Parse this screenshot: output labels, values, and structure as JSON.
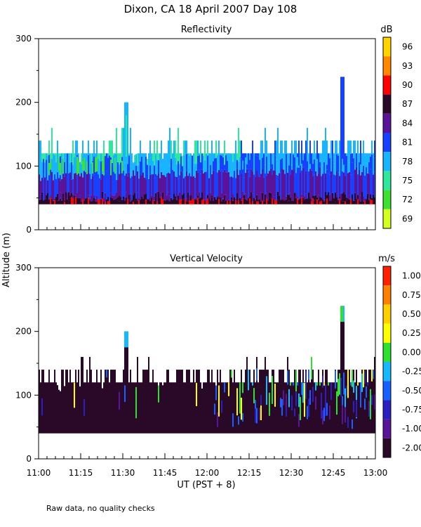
{
  "figure": {
    "title": "Dixon, CA 18 April 2007  Day 108",
    "ylabel": "Altitude (m)",
    "xlabel": "UT  (PST + 8)",
    "footnote": "Raw data, no quality checks"
  },
  "chart_data": [
    {
      "type": "heatmap",
      "title": "Reflectivity",
      "units": "dB",
      "x_tick_labels": [
        "11:00",
        "11:15",
        "11:30",
        "11:45",
        "12:00",
        "12:15",
        "12:30",
        "12:45",
        "13:00"
      ],
      "y_ticks": [
        0,
        100,
        200,
        300
      ],
      "ylim": [
        0,
        300
      ],
      "colorbar": {
        "ticks": [
          "96",
          "93",
          "90",
          "87",
          "84",
          "81",
          "78",
          "75",
          "72",
          "69"
        ],
        "colors": [
          "#ffd400",
          "#ff8800",
          "#ff0000",
          "#2a0828",
          "#5a149a",
          "#1840ff",
          "#18b4ff",
          "#30e89c",
          "#40e030",
          "#d4ff20"
        ]
      },
      "data_extent": {
        "bottom_m": 40,
        "main_top_m": 120,
        "sparse_top_m": 140,
        "max_spike_m": 240
      },
      "features": [
        {
          "x": "11:31",
          "top_m": 200
        },
        {
          "x": "12:48",
          "top_m": 240
        }
      ]
    },
    {
      "type": "heatmap",
      "title": "Vertical Velocity",
      "units": "m/s",
      "x_tick_labels": [
        "11:00",
        "11:15",
        "11:30",
        "11:45",
        "12:00",
        "12:15",
        "12:30",
        "12:45",
        "13:00"
      ],
      "y_ticks": [
        0,
        100,
        200,
        300
      ],
      "ylim": [
        0,
        300
      ],
      "colorbar": {
        "ticks": [
          "1.00",
          "0.75",
          "0.50",
          "0.25",
          "0.00",
          "-0.25",
          "-0.50",
          "-0.75",
          "-1.00",
          "-2.00"
        ],
        "colors": [
          "#ff2000",
          "#ff8000",
          "#ffd000",
          "#ffff00",
          "#30e030",
          "#18b8ff",
          "#1860ff",
          "#2a20c0",
          "#5a149a",
          "#2a0828"
        ]
      },
      "data_extent": {
        "bottom_m": 40,
        "main_top_m": 120,
        "sparse_top_m": 140,
        "max_spike_m": 240
      },
      "features": [
        {
          "x": "11:31",
          "top_m": 200
        },
        {
          "x": "12:48",
          "top_m": 240
        }
      ]
    }
  ]
}
